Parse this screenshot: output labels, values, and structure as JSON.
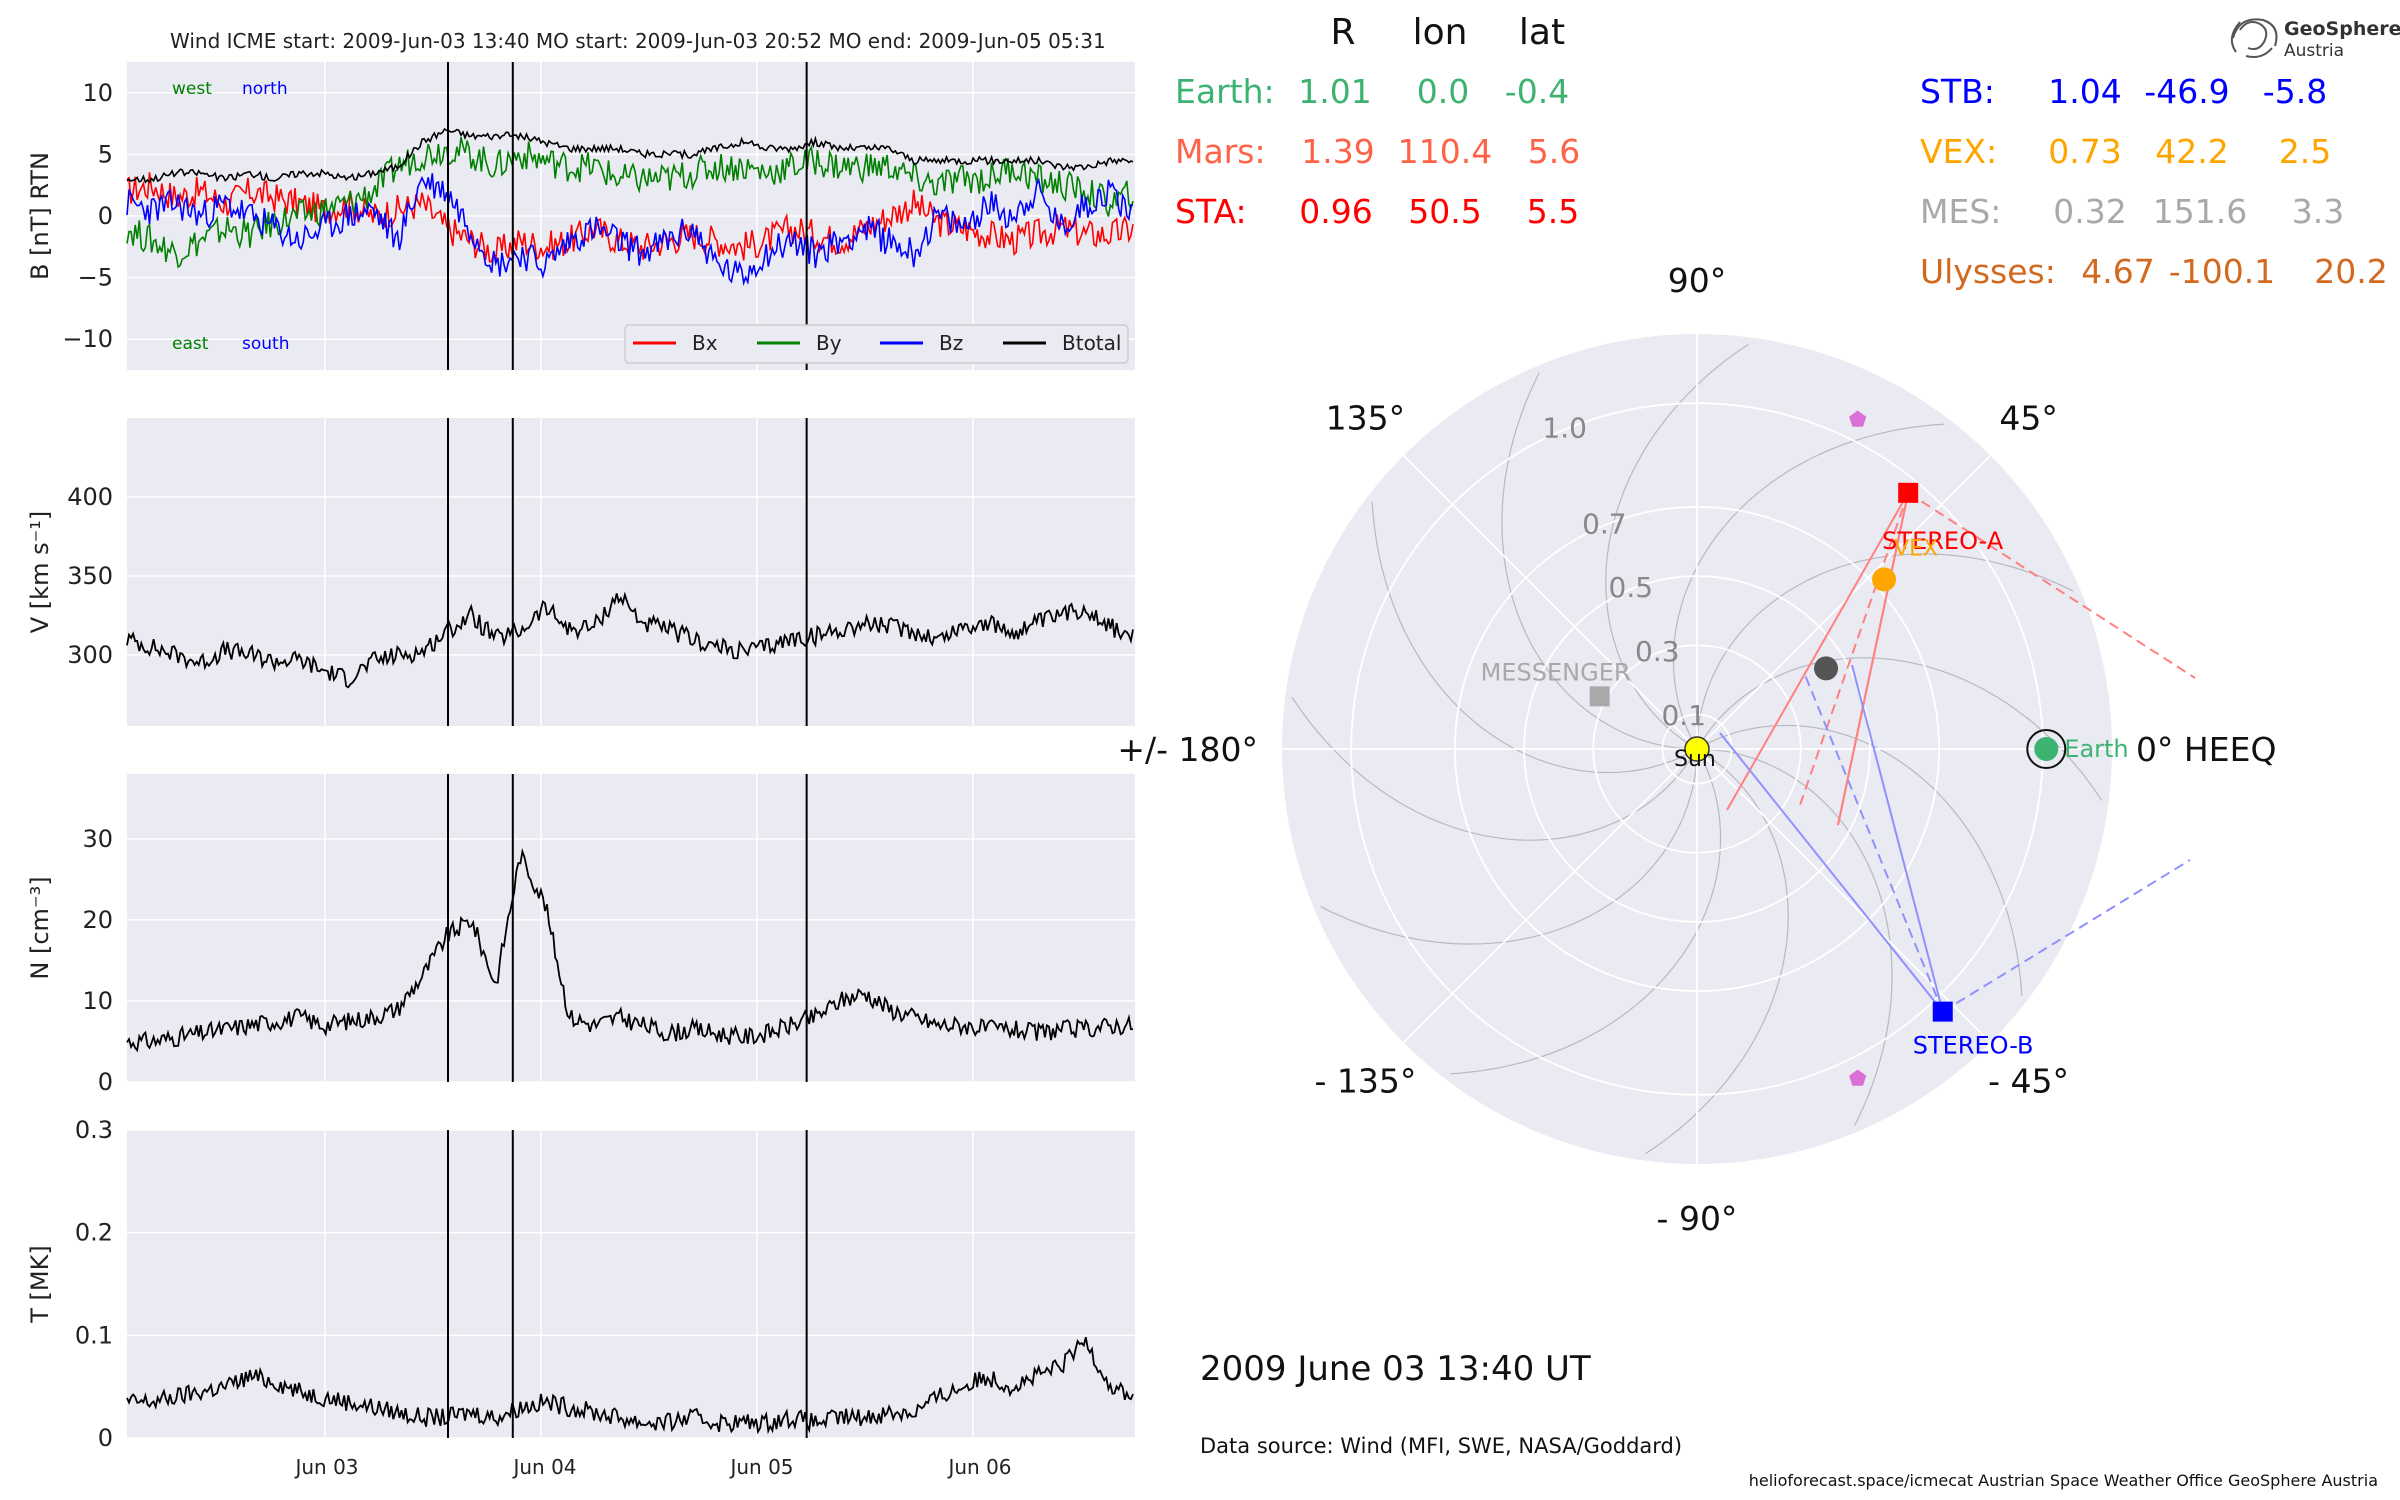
{
  "colors": {
    "panel_bg": "#eaeaf2",
    "grid": "#ffffff",
    "bx": "#ff0000",
    "by": "#008000",
    "bz": "#0000ff",
    "btotal": "#000000",
    "earth": "#3cb371",
    "mars": "#ff6347",
    "sta": "#ff0000",
    "stb": "#0000ff",
    "vex": "#ffa500",
    "mes": "#a9a9a9",
    "ulysses": "#d2691e",
    "psp_marker": "#da70d6",
    "sun": "#ffff00"
  },
  "insitu": {
    "title": "Wind    ICME start: 2009-Jun-03 13:40   MO start: 2009-Jun-03 20:52   MO end: 2009-Jun-05 05:31",
    "direction_labels": {
      "west": "west",
      "north": "north",
      "east": "east",
      "south": "south"
    },
    "legend": [
      "Bx",
      "By",
      "Bz",
      "Btotal"
    ],
    "x_ticks": [
      "Jun 03",
      "Jun 04",
      "Jun 05",
      "Jun 06"
    ]
  },
  "chart_data": [
    {
      "type": "line",
      "title": "Wind    ICME start: 2009-Jun-03 13:40   MO start: 2009-Jun-03 20:52   MO end: 2009-Jun-05 05:31",
      "ylabel": "B [nT] RTN",
      "ylim": [
        -12.5,
        12.5
      ],
      "yticks": [
        10,
        5,
        0,
        -5,
        -10
      ],
      "xlim": [
        "2009-06-02 02:00",
        "2009-06-06 18:00"
      ],
      "xticks": [
        "Jun 03",
        "Jun 04",
        "Jun 05",
        "Jun 06"
      ],
      "vlines": [
        "2009-06-03 13:40",
        "2009-06-03 20:52",
        "2009-06-05 05:31"
      ],
      "legend_position": "lower-right",
      "series": [
        {
          "name": "Bx",
          "color": "#ff0000",
          "values": [
            2,
            2.5,
            1.5,
            2,
            1,
            2,
            1.5,
            1,
            0.5,
            1,
            0,
            0.5,
            1,
            -1,
            -2,
            -3,
            -2,
            -2.5,
            -2,
            -1,
            -2,
            -2.5,
            -2,
            -1.5,
            -2,
            -2.5,
            -2,
            -1,
            -1.5,
            -2,
            -1,
            0,
            1,
            -0.5,
            -1,
            -1.5,
            -2,
            -1.5,
            -1,
            -1.5,
            -1.5,
            -1
          ]
        },
        {
          "name": "By",
          "color": "#008000",
          "values": [
            -1,
            -2,
            -3,
            -2,
            -1,
            -1.5,
            -0.5,
            0,
            0.5,
            1,
            2,
            4,
            5,
            5.5,
            5,
            4,
            5,
            4.5,
            4,
            4,
            3,
            3,
            3,
            3.5,
            4,
            4,
            3.5,
            4,
            4.5,
            4,
            4,
            4,
            3,
            2.5,
            3,
            3,
            4,
            3,
            2.5,
            2,
            1,
            2
          ]
        },
        {
          "name": "Bz",
          "color": "#0000ff",
          "values": [
            1,
            0.5,
            1,
            0,
            1,
            0,
            -1,
            -2,
            -1,
            0,
            0.5,
            -2,
            3,
            2,
            -1,
            -4,
            -3,
            -4,
            -2,
            -1,
            -2,
            -3,
            -2,
            -1,
            -4,
            -5,
            -3,
            -2,
            -3,
            -2,
            -1,
            -2,
            -3,
            0,
            -1,
            1,
            0,
            2,
            -1,
            1,
            2,
            0
          ]
        },
        {
          "name": "Btotal",
          "color": "#000000",
          "values": [
            3,
            3,
            3.5,
            3.5,
            3,
            3.5,
            3,
            3.5,
            3.5,
            3,
            3.5,
            4,
            6,
            7,
            6.5,
            6.5,
            6.5,
            6,
            5.5,
            5.5,
            5.5,
            5,
            5,
            5,
            5.5,
            6,
            5.5,
            5.5,
            6,
            5.5,
            5.5,
            5.5,
            4.5,
            4.5,
            4.5,
            4.5,
            4.5,
            4.5,
            4,
            4,
            4.5,
            4.5
          ]
        }
      ]
    },
    {
      "type": "line",
      "ylabel": "V [km s⁻¹]",
      "ylim": [
        255,
        450
      ],
      "yticks": [
        400,
        350,
        300
      ],
      "series": [
        {
          "name": "V",
          "color": "#000000",
          "values": [
            310,
            305,
            300,
            295,
            303,
            300,
            296,
            297,
            290,
            285,
            296,
            300,
            302,
            315,
            325,
            310,
            315,
            330,
            316,
            318,
            338,
            320,
            316,
            310,
            305,
            302,
            305,
            310,
            312,
            316,
            320,
            318,
            315,
            310,
            318,
            320,
            314,
            320,
            325,
            330,
            318,
            310
          ]
        }
      ]
    },
    {
      "type": "line",
      "ylabel": "N [cm⁻³]",
      "ylim": [
        0,
        38
      ],
      "yticks": [
        30,
        20,
        10,
        0
      ],
      "series": [
        {
          "name": "N",
          "color": "#000000",
          "values": [
            5,
            5,
            5.5,
            6,
            6.5,
            7,
            7.5,
            8,
            7,
            7.5,
            8,
            9,
            13,
            18,
            20,
            12,
            28,
            22,
            8,
            7,
            8,
            7,
            6,
            6.5,
            6,
            5.5,
            6,
            7,
            8,
            10,
            11,
            9,
            8,
            7,
            7,
            6.5,
            6.5,
            6,
            6.5,
            6.5,
            7,
            7
          ]
        }
      ]
    },
    {
      "type": "line",
      "ylabel": "T [MK]",
      "ylim": [
        0,
        0.3
      ],
      "yticks": [
        0.3,
        0.2,
        0.1,
        0.0
      ],
      "series": [
        {
          "name": "T",
          "color": "#000000",
          "values": [
            0.035,
            0.035,
            0.04,
            0.045,
            0.05,
            0.06,
            0.055,
            0.045,
            0.04,
            0.035,
            0.03,
            0.025,
            0.02,
            0.02,
            0.025,
            0.02,
            0.03,
            0.035,
            0.03,
            0.025,
            0.02,
            0.015,
            0.015,
            0.02,
            0.015,
            0.015,
            0.015,
            0.02,
            0.015,
            0.02,
            0.02,
            0.025,
            0.025,
            0.04,
            0.05,
            0.06,
            0.05,
            0.06,
            0.07,
            0.095,
            0.05,
            0.04
          ]
        }
      ]
    },
    {
      "type": "scatter",
      "coordinate_system": "polar (HEEQ, degrees / AU)",
      "radial_ticks": [
        "0.1",
        "0.3",
        "0.5",
        "0.7",
        "1.0"
      ],
      "radial_tick_values": [
        0.1,
        0.3,
        0.5,
        0.7,
        1.0
      ],
      "angle_labels": [
        "0° HEEQ",
        "45°",
        "90°",
        "135°",
        "+/- 180°",
        "- 135°",
        "- 90°",
        "- 45°"
      ],
      "angle_values": [
        0,
        45,
        90,
        135,
        180,
        -135,
        -90,
        -45
      ],
      "points": [
        {
          "name": "Earth",
          "r": 1.01,
          "lon": 0.0,
          "color": "#3cb371",
          "marker": "circle"
        },
        {
          "name": "STEREO-A",
          "r": 0.96,
          "lon": 50.5,
          "color": "#ff0000",
          "marker": "square"
        },
        {
          "name": "STEREO-B",
          "r": 1.04,
          "lon": -46.9,
          "color": "#0000ff",
          "marker": "square"
        },
        {
          "name": "VEX",
          "r": 0.73,
          "lon": 42.2,
          "color": "#ffa500",
          "marker": "circle"
        },
        {
          "name": "MESSENGER",
          "r": 0.32,
          "lon": 151.6,
          "color": "#a9a9a9",
          "marker": "square"
        },
        {
          "name": "",
          "r": 0.44,
          "lon": 32,
          "color": "#555555",
          "marker": "circle"
        },
        {
          "name": "",
          "r": 1.06,
          "lon": 64,
          "color": "#da70d6",
          "marker": "pentagon"
        },
        {
          "name": "",
          "r": 1.06,
          "lon": -64,
          "color": "#da70d6",
          "marker": "pentagon"
        },
        {
          "name": "Sun",
          "r": 0.0,
          "lon": 0.0,
          "color": "#ffff00",
          "marker": "circle"
        }
      ]
    }
  ],
  "positions_table": {
    "headers": [
      "R",
      "lon",
      "lat"
    ],
    "left_rows": [
      {
        "name": "Earth:",
        "R": "1.01",
        "lon": "0.0",
        "lat": "-0.4",
        "color": "#3cb371"
      },
      {
        "name": "Mars:",
        "R": "1.39",
        "lon": "110.4",
        "lat": "5.6",
        "color": "#ff6347"
      },
      {
        "name": "STA:",
        "R": "0.96",
        "lon": "50.5",
        "lat": "5.5",
        "color": "#ff0000"
      }
    ],
    "right_rows": [
      {
        "name": "STB:",
        "R": "1.04",
        "lon": "-46.9",
        "lat": "-5.8",
        "color": "#0000ff"
      },
      {
        "name": "VEX:",
        "R": "0.73",
        "lon": "42.2",
        "lat": "2.5",
        "color": "#ffa500"
      },
      {
        "name": "MES:",
        "R": "0.32",
        "lon": "151.6",
        "lat": "3.3",
        "color": "#a9a9a9"
      },
      {
        "name": "Ulysses:",
        "R": "4.67",
        "lon": "-100.1",
        "lat": "20.2",
        "color": "#d2691e"
      }
    ]
  },
  "logo": {
    "line1": "GeoSphere",
    "line2": "Austria"
  },
  "polar_labels": {
    "sun": "Sun",
    "earth": "Earth",
    "sta": "STEREO-A",
    "stb": "STEREO-B",
    "vex": "VEX",
    "mes": "MESSENGER"
  },
  "date_label": "2009 June 03  13:40 UT",
  "data_source": "Data source: Wind (MFI, SWE, NASA/Goddard)",
  "footer": "helioforecast.space/icmecat   Austrian Space Weather Office   GeoSphere Austria"
}
